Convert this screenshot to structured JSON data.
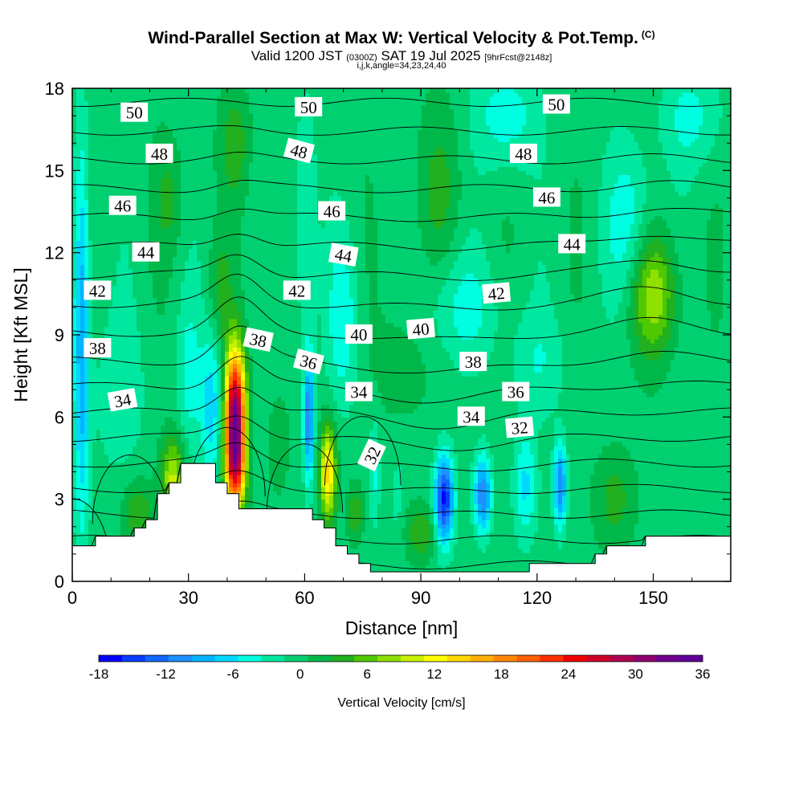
{
  "title": {
    "main": "Wind-Parallel Section at Max W: Vertical Velocity & Pot.Temp.",
    "copyright": "(C)",
    "valid_prefix": "Valid 1200 JST",
    "valid_utc": "(0300Z)",
    "valid_date": "SAT 19 Jul 2025",
    "forecast": "[9hrFcst@2148z]",
    "indices": "i,j,k,angle=34,23,24,40"
  },
  "colorbar": {
    "title": "Vertical Velocity [cm/s]",
    "ticks": [
      "-18",
      "-12",
      "-6",
      "0",
      "6",
      "12",
      "18",
      "24",
      "30",
      "36"
    ],
    "colors": [
      "#0000ff",
      "#0a3cff",
      "#1468ff",
      "#1e90ff",
      "#00b4ff",
      "#00d8ff",
      "#00ffe0",
      "#00e8a0",
      "#00d070",
      "#00b84a",
      "#20b020",
      "#50c800",
      "#90e000",
      "#c8f000",
      "#ffff00",
      "#ffd800",
      "#ffb000",
      "#ff8800",
      "#ff6000",
      "#ff3000",
      "#f00000",
      "#d00028",
      "#b00050",
      "#900070",
      "#700090",
      "#600098"
    ]
  },
  "chart_data": {
    "type": "heatmap",
    "title": "Wind-Parallel Section at Max W: Vertical Velocity & Pot.Temp.",
    "xlabel": "Distance [nm]",
    "ylabel": "Height [Kft MSL]",
    "xlim": [
      0,
      170
    ],
    "ylim": [
      0,
      18
    ],
    "x_ticks": [
      "0",
      "30",
      "60",
      "90",
      "120",
      "150"
    ],
    "y_ticks": [
      "0",
      "3",
      "6",
      "9",
      "12",
      "15",
      "18"
    ],
    "x_tick_values": [
      0,
      30,
      60,
      90,
      120,
      150
    ],
    "y_tick_values": [
      0,
      3,
      6,
      9,
      12,
      15,
      18
    ],
    "color_variable": "Vertical Velocity [cm/s]",
    "color_range": [
      -18,
      36
    ],
    "w_features": [
      {
        "x": 2.5,
        "y": 9.0,
        "w": -10,
        "sx": 2,
        "sy": 7
      },
      {
        "x": 12,
        "y": 7.0,
        "w": -3,
        "sx": 7,
        "sy": 3
      },
      {
        "x": 26,
        "y": 3.8,
        "w": 10,
        "sx": 3,
        "sy": 1.5
      },
      {
        "x": 17,
        "y": 2.5,
        "w": 5,
        "sx": 4,
        "sy": 1.2
      },
      {
        "x": 30,
        "y": 7.5,
        "w": -4,
        "sx": 3,
        "sy": 3
      },
      {
        "x": 36,
        "y": 6.5,
        "w": -7,
        "sx": 3,
        "sy": 3
      },
      {
        "x": 42,
        "y": 6.0,
        "w": 34,
        "sx": 2.6,
        "sy": 2.4
      },
      {
        "x": 42,
        "y": 4.0,
        "w": 14,
        "sx": 2.5,
        "sy": 1.5
      },
      {
        "x": 38,
        "y": 10.5,
        "w": 4,
        "sx": 3,
        "sy": 2
      },
      {
        "x": 53,
        "y": 5.0,
        "w": 2,
        "sx": 3,
        "sy": 2
      },
      {
        "x": 61,
        "y": 6.0,
        "w": -12,
        "sx": 1.3,
        "sy": 2.3
      },
      {
        "x": 66,
        "y": 4.0,
        "w": 15,
        "sx": 2,
        "sy": 1.7
      },
      {
        "x": 60,
        "y": 13.0,
        "w": -4,
        "sx": 3,
        "sy": 5
      },
      {
        "x": 70,
        "y": 9.5,
        "w": -5,
        "sx": 4,
        "sy": 3
      },
      {
        "x": 78,
        "y": 4.0,
        "w": -4,
        "sx": 1.5,
        "sy": 2
      },
      {
        "x": 84,
        "y": 3.0,
        "w": -2,
        "sx": 1.5,
        "sy": 2
      },
      {
        "x": 73,
        "y": 2.5,
        "w": 5,
        "sx": 2,
        "sy": 1
      },
      {
        "x": 96,
        "y": 3.0,
        "w": -17,
        "sx": 2.4,
        "sy": 1.6
      },
      {
        "x": 106,
        "y": 3.2,
        "w": -12,
        "sx": 2.2,
        "sy": 1.4
      },
      {
        "x": 126,
        "y": 3.5,
        "w": -12,
        "sx": 1.6,
        "sy": 1.5
      },
      {
        "x": 117,
        "y": 3.5,
        "w": -6,
        "sx": 3,
        "sy": 2
      },
      {
        "x": 90,
        "y": 1.8,
        "w": 5,
        "sx": 4,
        "sy": 1
      },
      {
        "x": 140,
        "y": 3.0,
        "w": 4,
        "sx": 5,
        "sy": 1.8
      },
      {
        "x": 150,
        "y": 10.5,
        "w": 9,
        "sx": 6,
        "sy": 2.2
      },
      {
        "x": 144,
        "y": 13.0,
        "w": -5,
        "sx": 6,
        "sy": 3
      },
      {
        "x": 100,
        "y": 10.0,
        "w": -4,
        "sx": 10,
        "sy": 2
      },
      {
        "x": 112,
        "y": 17.0,
        "w": -5,
        "sx": 8,
        "sy": 2
      },
      {
        "x": 160,
        "y": 17.0,
        "w": -4,
        "sx": 8,
        "sy": 2
      },
      {
        "x": 95,
        "y": 14.5,
        "w": 3,
        "sx": 6,
        "sy": 3
      },
      {
        "x": 42,
        "y": 16.0,
        "w": 4,
        "sx": 4,
        "sy": 2
      },
      {
        "x": 25,
        "y": 14.0,
        "w": 3,
        "sx": 4,
        "sy": 2
      },
      {
        "x": 120,
        "y": 8.0,
        "w": -3,
        "sx": 8,
        "sy": 2
      },
      {
        "x": 85,
        "y": 8.0,
        "w": 3,
        "sx": 6,
        "sy": 2
      }
    ],
    "terrain": [
      [
        0,
        1.3
      ],
      [
        6,
        1.3
      ],
      [
        6,
        1.65
      ],
      [
        10,
        1.65
      ],
      [
        10,
        1.65
      ],
      [
        16,
        1.65
      ],
      [
        16,
        1.95
      ],
      [
        19,
        1.95
      ],
      [
        19,
        2.25
      ],
      [
        22,
        2.25
      ],
      [
        22,
        3.2
      ],
      [
        25,
        3.2
      ],
      [
        25,
        3.6
      ],
      [
        28,
        3.6
      ],
      [
        28,
        4.3
      ],
      [
        37,
        4.3
      ],
      [
        37,
        3.6
      ],
      [
        40,
        3.6
      ],
      [
        40,
        3.2
      ],
      [
        43,
        3.2
      ],
      [
        43,
        2.65
      ],
      [
        62,
        2.65
      ],
      [
        62,
        2.25
      ],
      [
        65,
        2.25
      ],
      [
        65,
        1.95
      ],
      [
        68,
        1.95
      ],
      [
        68,
        1.3
      ],
      [
        71,
        1.3
      ],
      [
        71,
        1.0
      ],
      [
        74,
        1.0
      ],
      [
        74,
        0.65
      ],
      [
        77,
        0.65
      ],
      [
        77,
        0.35
      ],
      [
        118,
        0.35
      ],
      [
        118,
        0.65
      ],
      [
        135,
        0.65
      ],
      [
        135,
        1.0
      ],
      [
        138,
        1.0
      ],
      [
        138,
        1.3
      ],
      [
        148,
        1.3
      ],
      [
        148,
        1.65
      ],
      [
        170,
        1.65
      ]
    ],
    "theta_levels": [
      32,
      33,
      34,
      35,
      36,
      37,
      38,
      39,
      40,
      41,
      42,
      43,
      44,
      45,
      46,
      47,
      48,
      49,
      50,
      51
    ],
    "theta_labels": [
      {
        "text": "50",
        "x": 16,
        "y": 17.1,
        "rot": 0
      },
      {
        "text": "50",
        "x": 61,
        "y": 17.3,
        "rot": 0
      },
      {
        "text": "50",
        "x": 125,
        "y": 17.4,
        "rot": 0
      },
      {
        "text": "48",
        "x": 22.5,
        "y": 15.6,
        "rot": 0
      },
      {
        "text": "48",
        "x": 58.5,
        "y": 15.7,
        "rot": 15
      },
      {
        "text": "48",
        "x": 116.5,
        "y": 15.6,
        "rot": 0
      },
      {
        "text": "46",
        "x": 13,
        "y": 13.7,
        "rot": 0
      },
      {
        "text": "46",
        "x": 67,
        "y": 13.5,
        "rot": 0
      },
      {
        "text": "46",
        "x": 122.5,
        "y": 14.0,
        "rot": 0
      },
      {
        "text": "44",
        "x": 19,
        "y": 12.0,
        "rot": 0
      },
      {
        "text": "44",
        "x": 70,
        "y": 11.9,
        "rot": 10
      },
      {
        "text": "44",
        "x": 129,
        "y": 12.3,
        "rot": 0
      },
      {
        "text": "42",
        "x": 6.5,
        "y": 10.6,
        "rot": 0
      },
      {
        "text": "42",
        "x": 58,
        "y": 10.6,
        "rot": 0
      },
      {
        "text": "42",
        "x": 109.5,
        "y": 10.5,
        "rot": -5
      },
      {
        "text": "38",
        "x": 6.5,
        "y": 8.5,
        "rot": 0
      },
      {
        "text": "38",
        "x": 48,
        "y": 8.8,
        "rot": 12
      },
      {
        "text": "38",
        "x": 103.5,
        "y": 8.0,
        "rot": 0
      },
      {
        "text": "40",
        "x": 74,
        "y": 9.0,
        "rot": 0
      },
      {
        "text": "40",
        "x": 90,
        "y": 9.2,
        "rot": -5
      },
      {
        "text": "36",
        "x": 61,
        "y": 8.0,
        "rot": 15
      },
      {
        "text": "36",
        "x": 114.5,
        "y": 6.9,
        "rot": 0
      },
      {
        "text": "34",
        "x": 13,
        "y": 6.6,
        "rot": -10
      },
      {
        "text": "34",
        "x": 74,
        "y": 6.9,
        "rot": 0
      },
      {
        "text": "34",
        "x": 103,
        "y": 6.0,
        "rot": 0
      },
      {
        "text": "32",
        "x": 77.5,
        "y": 4.6,
        "rot": -65
      },
      {
        "text": "32",
        "x": 115.5,
        "y": 5.6,
        "rot": -5
      }
    ]
  }
}
